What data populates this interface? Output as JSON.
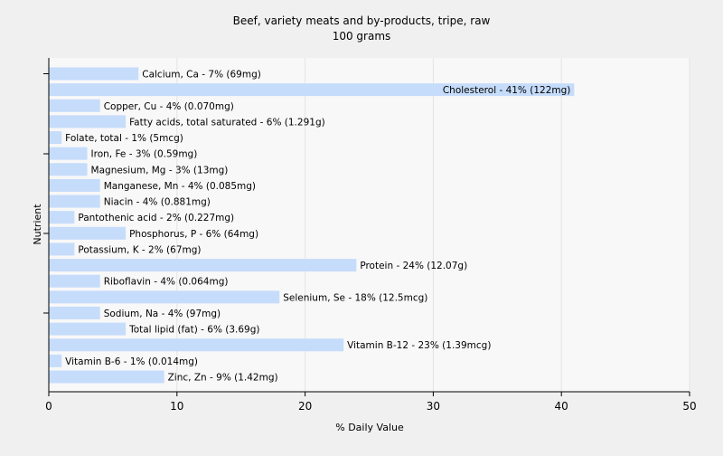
{
  "chart_data": {
    "type": "bar",
    "orientation": "horizontal",
    "title": "Beef, variety meats and by-products, tripe, raw",
    "subtitle": "100 grams",
    "xlabel": "% Daily Value",
    "ylabel": "Nutrient",
    "xlim": [
      0,
      50
    ],
    "xticks": [
      0,
      10,
      20,
      30,
      40,
      50
    ],
    "grid": true,
    "bar_color": "#c6dcfb",
    "background_color": "#f0f0f0",
    "plot_background_color": "#f8f8f8",
    "categories": [
      "Calcium, Ca",
      "Cholesterol",
      "Copper, Cu",
      "Fatty acids, total saturated",
      "Folate, total",
      "Iron, Fe",
      "Magnesium, Mg",
      "Manganese, Mn",
      "Niacin",
      "Pantothenic acid",
      "Phosphorus, P",
      "Potassium, K",
      "Protein",
      "Riboflavin",
      "Selenium, Se",
      "Sodium, Na",
      "Total lipid (fat)",
      "Vitamin B-12",
      "Vitamin B-6",
      "Zinc, Zn"
    ],
    "values": [
      7,
      41,
      4,
      6,
      1,
      3,
      3,
      4,
      4,
      2,
      6,
      2,
      24,
      4,
      18,
      4,
      6,
      23,
      1,
      9
    ],
    "labels": [
      "Calcium, Ca - 7% (69mg)",
      "Cholesterol - 41% (122mg)",
      "Copper, Cu - 4% (0.070mg)",
      "Fatty acids, total saturated - 6% (1.291g)",
      "Folate, total - 1% (5mcg)",
      "Iron, Fe - 3% (0.59mg)",
      "Magnesium, Mg - 3% (13mg)",
      "Manganese, Mn - 4% (0.085mg)",
      "Niacin - 4% (0.881mg)",
      "Pantothenic acid - 2% (0.227mg)",
      "Phosphorus, P - 6% (64mg)",
      "Potassium, K - 2% (67mg)",
      "Protein - 24% (12.07g)",
      "Riboflavin - 4% (0.064mg)",
      "Selenium, Se - 18% (12.5mcg)",
      "Sodium, Na - 4% (97mg)",
      "Total lipid (fat) - 6% (3.69g)",
      "Vitamin B-12 - 23% (1.39mcg)",
      "Vitamin B-6 - 1% (0.014mg)",
      "Zinc, Zn - 9% (1.42mg)"
    ],
    "inside_label_categories": [
      "Cholesterol"
    ]
  }
}
